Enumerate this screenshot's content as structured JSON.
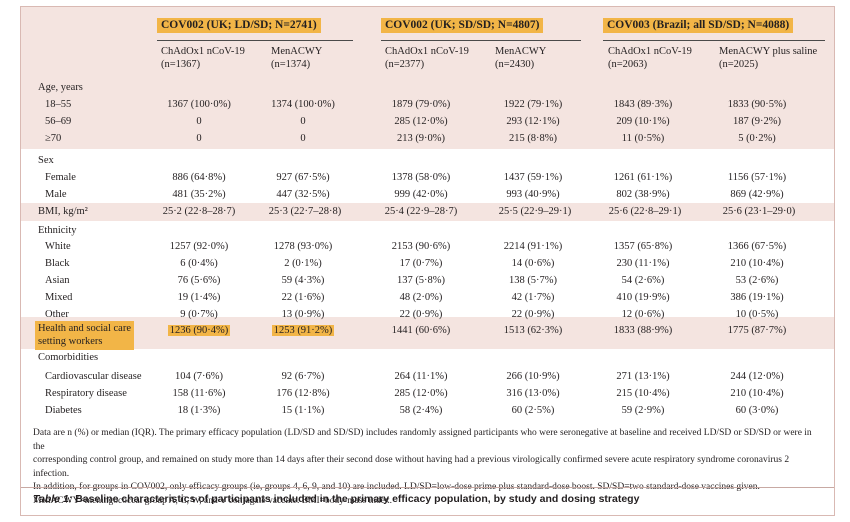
{
  "studies": [
    {
      "label": "COV002 (UK; LD/SD; N=2741)",
      "arms": [
        {
          "name": "ChAdOx1 nCoV-19",
          "n": "(n=1367)"
        },
        {
          "name": "MenACWY",
          "n": "(n=1374)"
        }
      ]
    },
    {
      "label": "COV002 (UK; SD/SD; N=4807)",
      "arms": [
        {
          "name": "ChAdOx1 nCoV-19",
          "n": "(n=2377)"
        },
        {
          "name": "MenACWY",
          "n": "(n=2430)"
        }
      ]
    },
    {
      "label": "COV003 (Brazil; all SD/SD; N=4088)",
      "arms": [
        {
          "name": "ChAdOx1 nCoV-19",
          "n": "(n=2063)"
        },
        {
          "name": "MenACWY plus saline",
          "n": "(n=2025)"
        }
      ]
    }
  ],
  "sections": {
    "age": {
      "label": "Age, years",
      "rows": [
        {
          "label": "18–55",
          "values": [
            "1367 (100·0%)",
            "1374 (100·0%)",
            "1879 (79·0%)",
            "1922 (79·1%)",
            "1843 (89·3%)",
            "1833 (90·5%)"
          ]
        },
        {
          "label": "56–69",
          "values": [
            "0",
            "0",
            "285 (12·0%)",
            "293 (12·1%)",
            "209 (10·1%)",
            "187 (9·2%)"
          ]
        },
        {
          "label": "≥70",
          "values": [
            "0",
            "0",
            "213 (9·0%)",
            "215 (8·8%)",
            "11 (0·5%)",
            "5 (0·2%)"
          ]
        }
      ]
    },
    "sex": {
      "label": "Sex",
      "rows": [
        {
          "label": "Female",
          "values": [
            "886 (64·8%)",
            "927 (67·5%)",
            "1378 (58·0%)",
            "1437 (59·1%)",
            "1261 (61·1%)",
            "1156 (57·1%)"
          ]
        },
        {
          "label": "Male",
          "values": [
            "481 (35·2%)",
            "447 (32·5%)",
            "999 (42·0%)",
            "993 (40·9%)",
            "802 (38·9%)",
            "869 (42·9%)"
          ]
        }
      ]
    },
    "bmi": {
      "label": "BMI, kg/m²",
      "values": [
        "25·2 (22·8–28·7)",
        "25·3 (22·7–28·8)",
        "25·4 (22·9–28·7)",
        "25·5 (22·9–29·1)",
        "25·6 (22·8–29·1)",
        "25·6 (23·1–29·0)"
      ]
    },
    "ethnicity": {
      "label": "Ethnicity",
      "rows": [
        {
          "label": "White",
          "values": [
            "1257 (92·0%)",
            "1278 (93·0%)",
            "2153 (90·6%)",
            "2214 (91·1%)",
            "1357 (65·8%)",
            "1366 (67·5%)"
          ]
        },
        {
          "label": "Black",
          "values": [
            "6 (0·4%)",
            "2 (0·1%)",
            "17 (0·7%)",
            "14 (0·6%)",
            "230 (11·1%)",
            "210 (10·4%)"
          ]
        },
        {
          "label": "Asian",
          "values": [
            "76 (5·6%)",
            "59 (4·3%)",
            "137 (5·8%)",
            "138 (5·7%)",
            "54 (2·6%)",
            "53 (2·6%)"
          ]
        },
        {
          "label": "Mixed",
          "values": [
            "19 (1·4%)",
            "22 (1·6%)",
            "48 (2·0%)",
            "42 (1·7%)",
            "410 (19·9%)",
            "386 (19·1%)"
          ]
        },
        {
          "label": "Other",
          "values": [
            "9 (0·7%)",
            "13 (0·9%)",
            "22 (0·9%)",
            "22 (0·9%)",
            "12 (0·6%)",
            "10 (0·5%)"
          ]
        }
      ]
    },
    "hcw": {
      "label_line1": "Health and social care",
      "label_line2": "setting workers",
      "values": [
        "1236 (90·4%)",
        "1253 (91·2%)",
        "1441 (60·6%)",
        "1513 (62·3%)",
        "1833 (88·9%)",
        "1775 (87·7%)"
      ]
    },
    "comorbidities": {
      "label": "Comorbidities",
      "rows": [
        {
          "label": "Cardiovascular disease",
          "values": [
            "104 (7·6%)",
            "92 (6·7%)",
            "264 (11·1%)",
            "266 (10·9%)",
            "271 (13·1%)",
            "244 (12·0%)"
          ]
        },
        {
          "label": "Respiratory disease",
          "values": [
            "158 (11·6%)",
            "176 (12·8%)",
            "285 (12·0%)",
            "316 (13·0%)",
            "215 (10·4%)",
            "210 (10·4%)"
          ]
        },
        {
          "label": "Diabetes",
          "values": [
            "18 (1·3%)",
            "15 (1·1%)",
            "58 (2·4%)",
            "60 (2·5%)",
            "59 (2·9%)",
            "60 (3·0%)"
          ]
        }
      ]
    }
  },
  "notes": {
    "line1": "Data are n (%) or median (IQR). The primary efficacy population (LD/SD and SD/SD) includes randomly assigned participants who were seronegative at baseline and received LD/SD or SD/SD or were in the",
    "line2": "corresponding control group, and remained on study more than 14 days after their second dose without having had a previous virologically confirmed severe acute respiratory syndrome coronavirus 2 infection.",
    "line3": "In addition, for groups in COV002, only efficacy groups (ie, groups 4, 6, 9, and 10) are included. LD/SD=low-dose prime plus standard-dose boost. SD/SD=two standard-dose vaccines given.",
    "line4": "MenACWY=meningococcal group A, C, W, and Y conjugate vaccine. BMI=body-mass index."
  },
  "caption": {
    "label": "Table 1:",
    "text": " Baseline characteristics of participants included in the primary efficacy population, by study and dosing strategy"
  },
  "colors": {
    "background": "#f4e4e0",
    "highlight": "#f2b547",
    "border": "#d9b9b3"
  }
}
